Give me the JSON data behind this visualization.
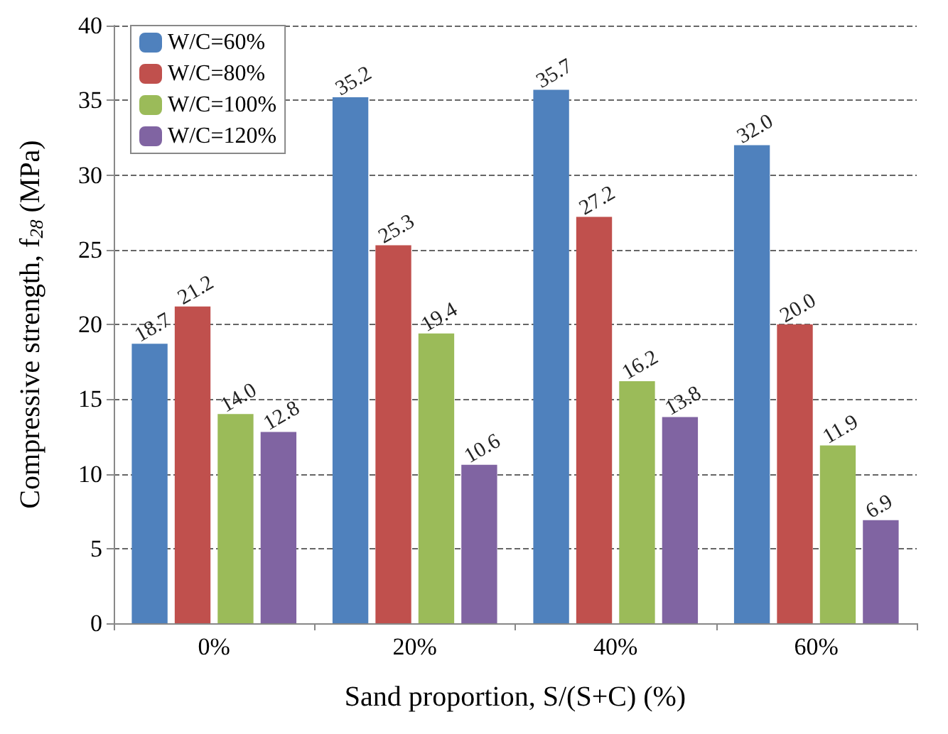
{
  "chart_data": {
    "type": "bar",
    "xlabel": "Sand proportion, S/(S+C) (%)",
    "ylabel": "Compressive strength, f$_{28}$ (MPa)",
    "categories": [
      "0%",
      "20%",
      "40%",
      "60%"
    ],
    "series": [
      {
        "name": "W/C=60%",
        "color": "#4f81bd",
        "values": [
          18.7,
          35.2,
          35.7,
          32.0
        ],
        "value_labels": [
          "18.7",
          "35.2",
          "35.7",
          "32.0"
        ]
      },
      {
        "name": "W/C=80%",
        "color": "#c0504d",
        "values": [
          21.2,
          25.3,
          27.2,
          20.0
        ],
        "value_labels": [
          "21.2",
          "25.3",
          "27.2",
          "20.0"
        ]
      },
      {
        "name": "W/C=100%",
        "color": "#9bbb59",
        "values": [
          14.0,
          19.4,
          16.2,
          11.9
        ],
        "value_labels": [
          "14.0",
          "19.4",
          "16.2",
          "11.9"
        ]
      },
      {
        "name": "W/C=120%",
        "color": "#8064a2",
        "values": [
          12.8,
          10.6,
          13.8,
          6.9
        ],
        "value_labels": [
          "12.8",
          "10.6",
          "13.8",
          "6.9"
        ]
      }
    ],
    "ylim": [
      0,
      40
    ],
    "yticks": [
      0,
      5,
      10,
      15,
      20,
      25,
      30,
      35,
      40
    ],
    "grid": "y",
    "legend": "top left"
  }
}
